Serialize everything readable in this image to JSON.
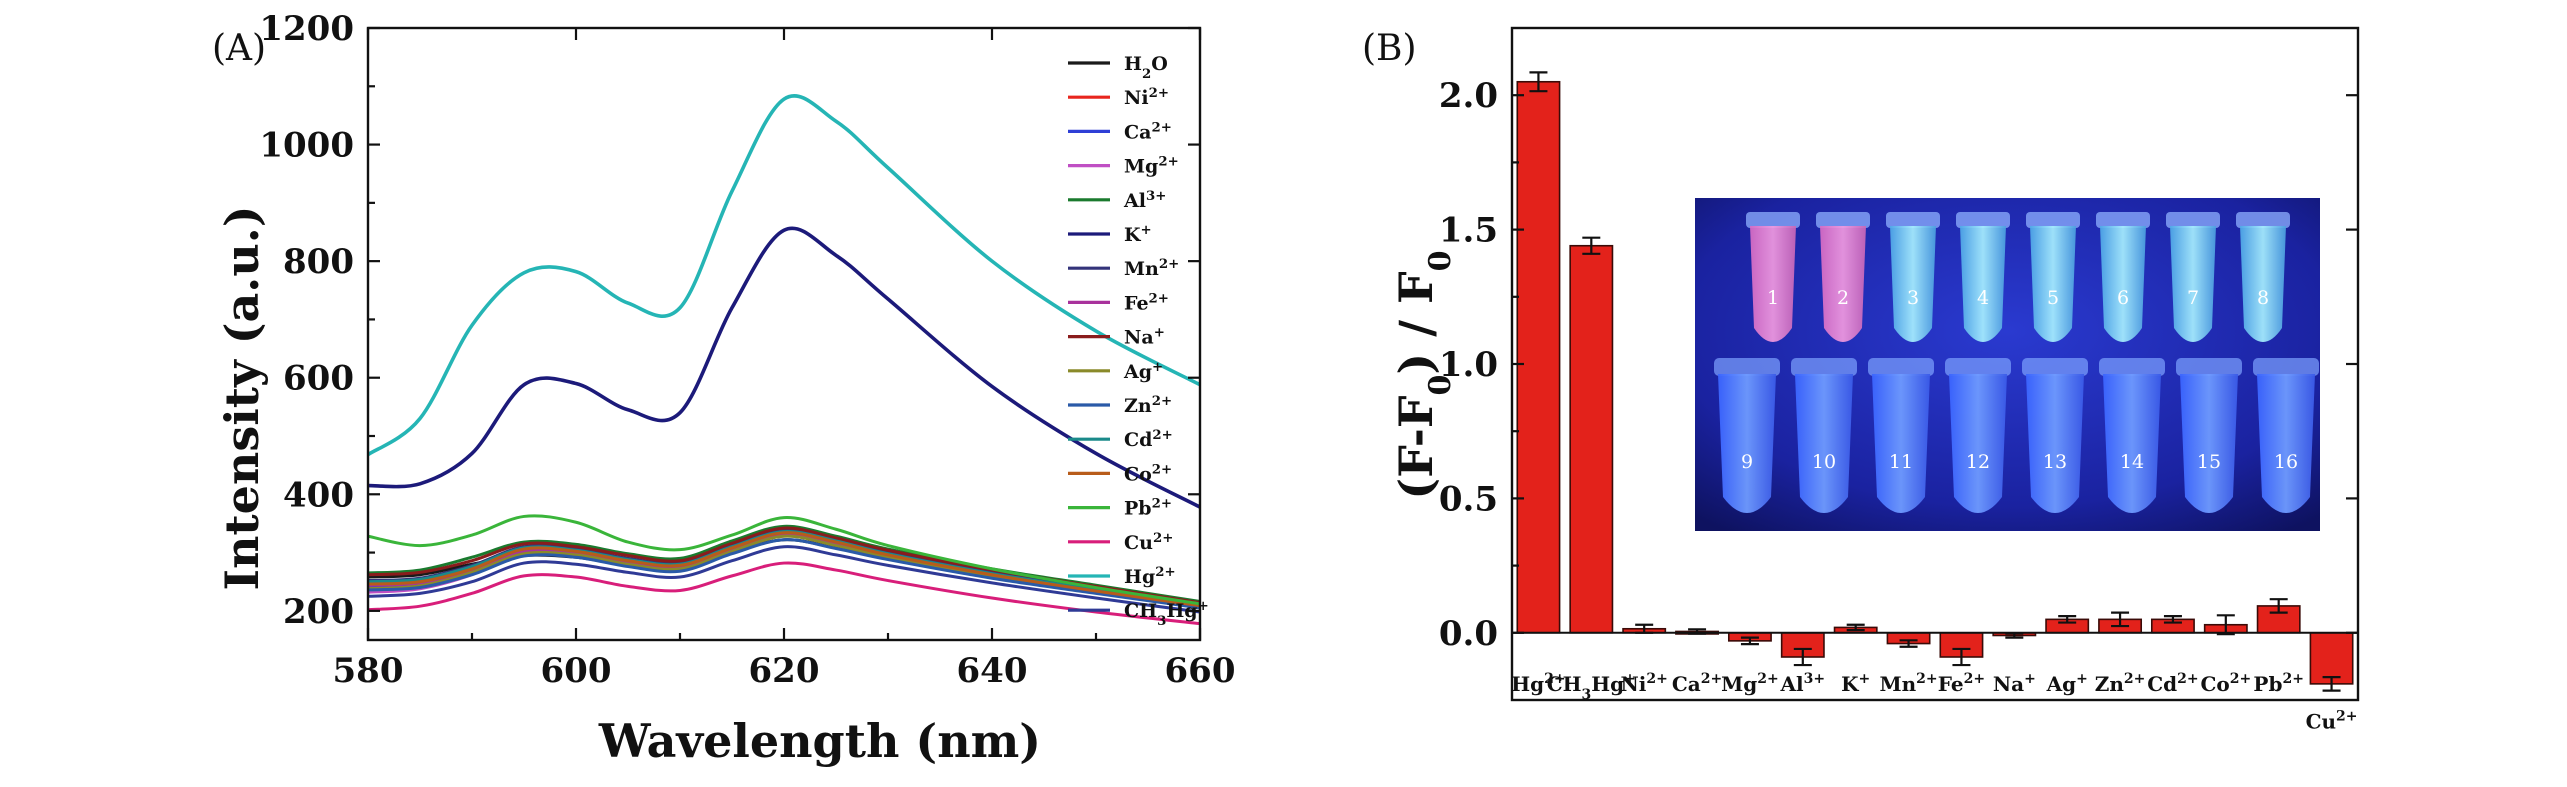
{
  "chart_data": [
    {
      "type": "line",
      "panel_label": "(A)",
      "xlabel": "Wavelength (nm)",
      "ylabel": "Intensity (a.u.)",
      "xlim": [
        580,
        660
      ],
      "ylim": [
        150,
        1200
      ],
      "xticks": [
        580,
        600,
        620,
        640,
        660
      ],
      "yticks": [
        200,
        400,
        600,
        800,
        1000,
        1200
      ],
      "x": [
        580,
        585,
        590,
        595,
        600,
        605,
        610,
        615,
        620,
        625,
        630,
        640,
        650,
        660
      ],
      "series": [
        {
          "name": "H2O",
          "base": "H",
          "sub": "2",
          "post": "O",
          "sup": "",
          "color": "#1a1a1a",
          "values": [
            258,
            262,
            280,
            295,
            292,
            278,
            272,
            300,
            322,
            308,
            290,
            258,
            232,
            208
          ]
        },
        {
          "name": "Ni2+",
          "base": "Ni",
          "sub": "",
          "post": "",
          "sup": "2+",
          "color": "#e8261e",
          "values": [
            248,
            252,
            272,
            300,
            298,
            282,
            275,
            305,
            330,
            315,
            295,
            262,
            236,
            210
          ]
        },
        {
          "name": "Ca2+",
          "base": "Ca",
          "sub": "",
          "post": "",
          "sup": "2+",
          "color": "#2e3fd6",
          "values": [
            240,
            246,
            270,
            304,
            300,
            286,
            278,
            310,
            335,
            318,
            298,
            265,
            238,
            212
          ]
        },
        {
          "name": "Mg2+",
          "base": "Mg",
          "sub": "",
          "post": "",
          "sup": "2+",
          "color": "#c04fc4",
          "values": [
            232,
            238,
            262,
            300,
            298,
            282,
            275,
            305,
            330,
            315,
            294,
            262,
            234,
            208
          ]
        },
        {
          "name": "Al3+",
          "base": "Al",
          "sub": "",
          "post": "",
          "sup": "3+",
          "color": "#1a7a2e",
          "values": [
            265,
            270,
            292,
            318,
            314,
            298,
            290,
            320,
            345,
            328,
            306,
            272,
            244,
            216
          ]
        },
        {
          "name": "K+",
          "base": "K",
          "sub": "",
          "post": "",
          "sup": "+",
          "color": "#1c1a7a",
          "values": [
            415,
            418,
            470,
            588,
            590,
            545,
            540,
            720,
            853,
            810,
            735,
            585,
            470,
            378
          ]
        },
        {
          "name": "Mn2+",
          "base": "Mn",
          "sub": "",
          "post": "",
          "sup": "2+",
          "color": "#33337a",
          "values": [
            252,
            256,
            278,
            310,
            306,
            290,
            282,
            312,
            338,
            322,
            300,
            266,
            238,
            212
          ]
        },
        {
          "name": "Fe2+",
          "base": "Fe",
          "sub": "",
          "post": "",
          "sup": "2+",
          "color": "#a8329c",
          "values": [
            244,
            248,
            270,
            302,
            298,
            284,
            276,
            306,
            332,
            316,
            296,
            262,
            236,
            210
          ]
        },
        {
          "name": "Na+",
          "base": "Na",
          "sub": "",
          "post": "",
          "sup": "+",
          "color": "#8a1c1c",
          "values": [
            262,
            266,
            286,
            315,
            310,
            295,
            286,
            316,
            342,
            325,
            304,
            270,
            242,
            214
          ]
        },
        {
          "name": "Ag+",
          "base": "Ag",
          "sub": "",
          "post": "",
          "sup": "+",
          "color": "#8a8a2a",
          "values": [
            238,
            243,
            266,
            298,
            296,
            280,
            272,
            302,
            328,
            312,
            292,
            259,
            232,
            207
          ]
        },
        {
          "name": "Zn2+",
          "base": "Zn",
          "sub": "",
          "post": "",
          "sup": "2+",
          "color": "#2a5aa8",
          "values": [
            236,
            240,
            262,
            294,
            292,
            276,
            268,
            298,
            322,
            307,
            288,
            256,
            230,
            205
          ]
        },
        {
          "name": "Cd2+",
          "base": "Cd",
          "sub": "",
          "post": "",
          "sup": "2+",
          "color": "#1a8a8a",
          "values": [
            250,
            254,
            276,
            308,
            304,
            288,
            280,
            310,
            336,
            320,
            298,
            264,
            236,
            210
          ]
        },
        {
          "name": "Co2+",
          "base": "Co",
          "sub": "",
          "post": "",
          "sup": "2+",
          "color": "#b85c1a",
          "values": [
            246,
            250,
            272,
            306,
            302,
            286,
            278,
            308,
            334,
            318,
            296,
            262,
            234,
            209
          ]
        },
        {
          "name": "Pb2+",
          "base": "Pb",
          "sub": "",
          "post": "",
          "sup": "2+",
          "color": "#3ab53a",
          "values": [
            328,
            312,
            330,
            362,
            352,
            318,
            305,
            330,
            360,
            340,
            312,
            272,
            240,
            212
          ]
        },
        {
          "name": "Cu2+",
          "base": "Cu",
          "sub": "",
          "post": "",
          "sup": "2+",
          "color": "#d81e7a",
          "values": [
            202,
            208,
            230,
            260,
            258,
            242,
            235,
            260,
            282,
            270,
            252,
            222,
            198,
            178
          ]
        },
        {
          "name": "Hg2+",
          "base": "Hg",
          "sub": "",
          "post": "",
          "sup": "2+",
          "color": "#25b5b5",
          "values": [
            468,
            530,
            690,
            780,
            782,
            728,
            720,
            920,
            1078,
            1040,
            960,
            800,
            680,
            588
          ]
        },
        {
          "name": "CH3Hg+",
          "base": "CH",
          "sub": "3",
          "post": "Hg",
          "sup": "+",
          "color": "#2f3a96",
          "values": [
            225,
            230,
            250,
            282,
            280,
            266,
            258,
            286,
            310,
            296,
            278,
            248,
            222,
            198
          ]
        }
      ]
    },
    {
      "type": "bar",
      "panel_label": "(B)",
      "ylabel": "(F-F0) / F0",
      "ylim": [
        -0.25,
        2.25
      ],
      "yticks": [
        0.0,
        0.5,
        1.0,
        1.5,
        2.0
      ],
      "ytick_labels": [
        "0.0",
        "0.5",
        "1.0",
        "1.5",
        "2.0"
      ],
      "bar_color": "#e3221b",
      "categories": [
        {
          "name": "Hg2+",
          "base": "Hg",
          "sub": "",
          "post": "",
          "sup": "2+"
        },
        {
          "name": "CH3Hg+",
          "base": "CH",
          "sub": "3",
          "post": "Hg",
          "sup": "+"
        },
        {
          "name": "Ni2+",
          "base": "Ni",
          "sub": "",
          "post": "",
          "sup": "2+"
        },
        {
          "name": "Ca2+",
          "base": "Ca",
          "sub": "",
          "post": "",
          "sup": "2+"
        },
        {
          "name": "Mg2+",
          "base": "Mg",
          "sub": "",
          "post": "",
          "sup": "2+"
        },
        {
          "name": "Al3+",
          "base": "Al",
          "sub": "",
          "post": "",
          "sup": "3+"
        },
        {
          "name": "K+",
          "base": "K",
          "sub": "",
          "post": "",
          "sup": "+"
        },
        {
          "name": "Mn2+",
          "base": "Mn",
          "sub": "",
          "post": "",
          "sup": "2+"
        },
        {
          "name": "Fe2+",
          "base": "Fe",
          "sub": "",
          "post": "",
          "sup": "2+"
        },
        {
          "name": "Na+",
          "base": "Na",
          "sub": "",
          "post": "",
          "sup": "+"
        },
        {
          "name": "Ag+",
          "base": "Ag",
          "sub": "",
          "post": "",
          "sup": "+"
        },
        {
          "name": "Zn2+",
          "base": "Zn",
          "sub": "",
          "post": "",
          "sup": "2+"
        },
        {
          "name": "Cd2+",
          "base": "Cd",
          "sub": "",
          "post": "",
          "sup": "2+"
        },
        {
          "name": "Co2+",
          "base": "Co",
          "sub": "",
          "post": "",
          "sup": "2+"
        },
        {
          "name": "Pb2+",
          "base": "Pb",
          "sub": "",
          "post": "",
          "sup": "2+"
        },
        {
          "name": "Cu2+",
          "base": "Cu",
          "sub": "",
          "post": "",
          "sup": "2+"
        }
      ],
      "values": [
        2.05,
        1.44,
        0.015,
        0.005,
        -0.03,
        -0.09,
        0.02,
        -0.04,
        -0.09,
        -0.01,
        0.05,
        0.05,
        0.05,
        0.03,
        0.1,
        -0.19
      ],
      "errors": [
        0.035,
        0.03,
        0.015,
        0.008,
        0.012,
        0.03,
        0.01,
        0.012,
        0.03,
        0.008,
        0.012,
        0.025,
        0.012,
        0.035,
        0.025,
        0.025
      ],
      "inset": {
        "photo": "fluorescent sample tubes under UV light",
        "top_row": [
          "1",
          "2",
          "3",
          "4",
          "5",
          "6",
          "7",
          "8"
        ],
        "bottom_row": [
          "9",
          "10",
          "11",
          "12",
          "13",
          "14",
          "15",
          "16"
        ],
        "pink_tubes": [
          "1",
          "2"
        ]
      }
    }
  ]
}
